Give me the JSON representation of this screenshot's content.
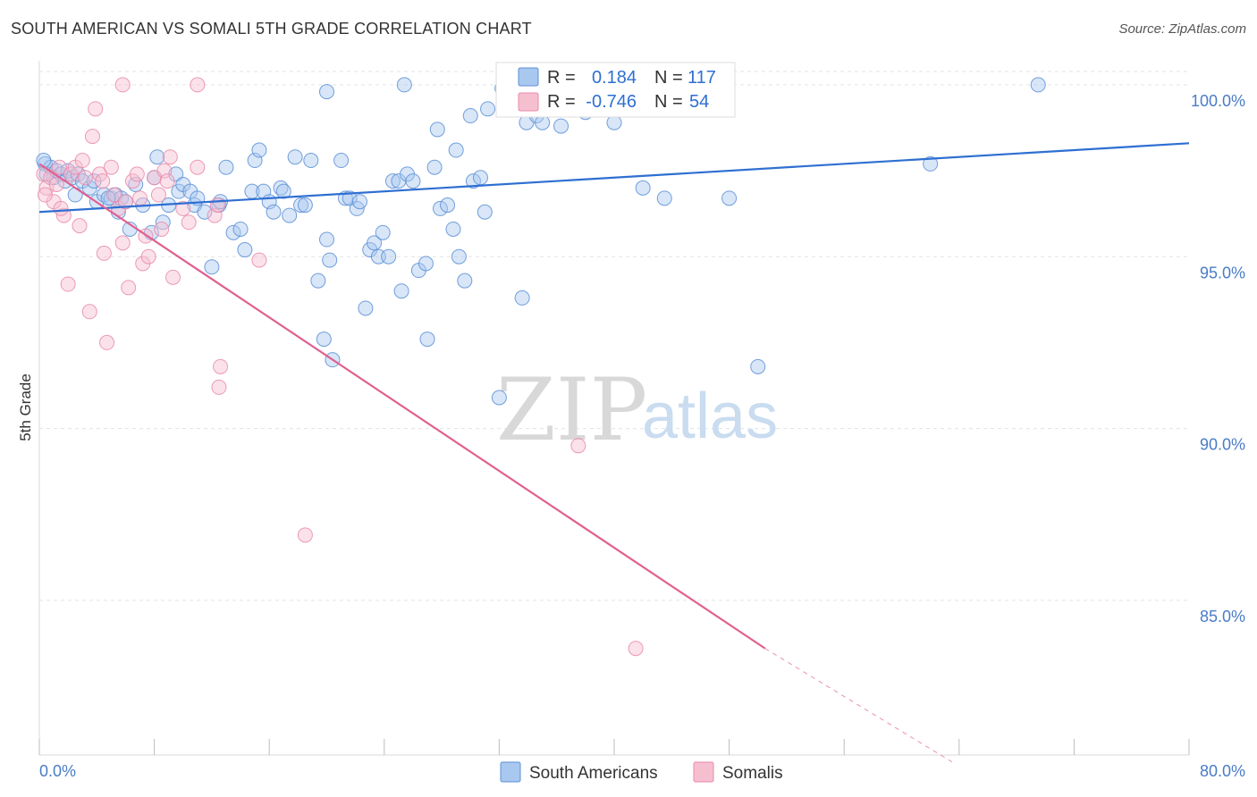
{
  "header": {
    "title": "SOUTH AMERICAN VS SOMALI 5TH GRADE CORRELATION CHART",
    "source": "Source: ZipAtlas.com"
  },
  "watermark": {
    "zip": "ZIP",
    "atlas": "atlas"
  },
  "legend": {
    "rows": [
      {
        "r_label": "R =",
        "r_value": "0.184",
        "n_label": "N =",
        "n_value": "117"
      },
      {
        "r_label": "R =",
        "r_value": "-0.746",
        "n_label": "N =",
        "n_value": "54"
      }
    ]
  },
  "colors": {
    "blue_fill": "#a9c8ef",
    "blue_stroke": "#5b8fd6",
    "blue_line": "#2e6fd1",
    "pink_fill": "#f6bfd0",
    "pink_stroke": "#e98aaa",
    "pink_line": "#e0608f",
    "axis_text": "#4a7cc7",
    "grid": "#e3e3e3"
  },
  "chart_data": {
    "type": "scatter",
    "title": "SOUTH AMERICAN VS SOMALI 5TH GRADE CORRELATION CHART",
    "xlabel": "",
    "ylabel": "5th Grade",
    "xlim": [
      0,
      80
    ],
    "ylim": [
      80.5,
      100.7
    ],
    "x_tick_labels": [
      "0.0%",
      "80.0%"
    ],
    "y_tick_labels": [
      "100.0%",
      "95.0%",
      "90.0%",
      "85.0%"
    ],
    "y_ticks": [
      100,
      95,
      90,
      85
    ],
    "x_minor_ticks": [
      0,
      8,
      16,
      24,
      32,
      40,
      48,
      56,
      64,
      72,
      80
    ],
    "grid": true,
    "legend_position": "top-center",
    "series": [
      {
        "name": "South Americans",
        "r": 0.184,
        "n": 117,
        "trend": {
          "x": [
            0,
            80
          ],
          "y": [
            96.3,
            98.3
          ]
        },
        "points": [
          [
            0.4,
            97.7
          ],
          [
            0.5,
            97.4
          ],
          [
            0.8,
            97.6
          ],
          [
            1.0,
            97.3
          ],
          [
            1.2,
            97.5
          ],
          [
            1.5,
            97.4
          ],
          [
            1.8,
            97.2
          ],
          [
            2.0,
            97.5
          ],
          [
            2.3,
            97.3
          ],
          [
            2.7,
            97.4
          ],
          [
            3.0,
            97.2
          ],
          [
            3.5,
            97.0
          ],
          [
            4.0,
            96.6
          ],
          [
            4.5,
            96.8
          ],
          [
            5.0,
            96.7
          ],
          [
            5.3,
            96.8
          ],
          [
            5.7,
            96.7
          ],
          [
            6.0,
            96.6
          ],
          [
            6.7,
            97.1
          ],
          [
            7.2,
            96.5
          ],
          [
            7.8,
            95.7
          ],
          [
            8.2,
            97.9
          ],
          [
            8.6,
            96.0
          ],
          [
            9.0,
            96.5
          ],
          [
            9.5,
            97.4
          ],
          [
            9.7,
            96.9
          ],
          [
            10.0,
            97.1
          ],
          [
            10.5,
            96.9
          ],
          [
            10.8,
            96.5
          ],
          [
            11.0,
            96.7
          ],
          [
            11.5,
            96.3
          ],
          [
            12.0,
            94.7
          ],
          [
            12.5,
            96.5
          ],
          [
            12.6,
            96.6
          ],
          [
            13.0,
            97.6
          ],
          [
            13.5,
            95.7
          ],
          [
            14.0,
            95.8
          ],
          [
            14.3,
            95.2
          ],
          [
            14.8,
            96.9
          ],
          [
            15.0,
            97.8
          ],
          [
            15.3,
            98.1
          ],
          [
            15.6,
            96.9
          ],
          [
            16.0,
            96.6
          ],
          [
            16.3,
            96.3
          ],
          [
            16.8,
            97.0
          ],
          [
            17.0,
            96.9
          ],
          [
            17.4,
            96.2
          ],
          [
            17.8,
            97.9
          ],
          [
            18.2,
            96.5
          ],
          [
            18.5,
            96.5
          ],
          [
            18.9,
            97.8
          ],
          [
            19.4,
            94.3
          ],
          [
            19.8,
            92.6
          ],
          [
            20.0,
            95.5
          ],
          [
            20.2,
            94.9
          ],
          [
            20.4,
            92.0
          ],
          [
            21.0,
            97.8
          ],
          [
            21.3,
            96.7
          ],
          [
            21.6,
            96.7
          ],
          [
            22.1,
            96.4
          ],
          [
            22.3,
            96.6
          ],
          [
            22.7,
            93.5
          ],
          [
            23.0,
            95.2
          ],
          [
            23.3,
            95.4
          ],
          [
            23.6,
            95.0
          ],
          [
            23.9,
            95.7
          ],
          [
            24.3,
            95.0
          ],
          [
            24.6,
            97.2
          ],
          [
            25.0,
            97.2
          ],
          [
            25.2,
            94.0
          ],
          [
            25.6,
            97.4
          ],
          [
            26.0,
            97.2
          ],
          [
            25.4,
            100.0
          ],
          [
            20.0,
            99.8
          ],
          [
            26.4,
            94.6
          ],
          [
            26.9,
            94.8
          ],
          [
            27.0,
            92.6
          ],
          [
            27.5,
            97.6
          ],
          [
            27.7,
            98.7
          ],
          [
            27.9,
            96.4
          ],
          [
            28.4,
            96.5
          ],
          [
            28.8,
            95.8
          ],
          [
            29.0,
            98.1
          ],
          [
            29.2,
            95.0
          ],
          [
            29.6,
            94.3
          ],
          [
            30.0,
            99.1
          ],
          [
            30.2,
            97.2
          ],
          [
            30.7,
            97.3
          ],
          [
            31.0,
            96.3
          ],
          [
            31.2,
            99.3
          ],
          [
            32.0,
            90.9
          ],
          [
            32.2,
            99.9
          ],
          [
            33.6,
            93.8
          ],
          [
            33.9,
            98.9
          ],
          [
            34.3,
            99.6
          ],
          [
            34.6,
            99.1
          ],
          [
            35.0,
            98.9
          ],
          [
            36.3,
            98.8
          ],
          [
            36.6,
            99.9
          ],
          [
            37.5,
            99.8
          ],
          [
            39.0,
            99.8
          ],
          [
            39.5,
            99.5
          ],
          [
            40.2,
            99.3
          ],
          [
            40.5,
            99.3
          ],
          [
            38.8,
            99.7
          ],
          [
            38.0,
            99.2
          ],
          [
            37.8,
            100.0
          ],
          [
            40.0,
            98.9
          ],
          [
            41.1,
            99.4
          ],
          [
            42.0,
            97.0
          ],
          [
            43.5,
            96.7
          ],
          [
            48.0,
            96.7
          ],
          [
            50.0,
            91.8
          ],
          [
            62.0,
            97.7
          ],
          [
            69.5,
            100.0
          ],
          [
            0.3,
            97.8
          ],
          [
            2.5,
            96.8
          ],
          [
            6.3,
            95.8
          ],
          [
            8.0,
            97.3
          ],
          [
            3.8,
            97.2
          ],
          [
            5.5,
            96.3
          ],
          [
            4.8,
            96.7
          ]
        ]
      },
      {
        "name": "Somalis",
        "r": -0.746,
        "n": 54,
        "trend": {
          "x": [
            0,
            50.5
          ],
          "y": [
            97.7,
            83.6
          ]
        },
        "trend_dashed": {
          "x": [
            50.5,
            63.5
          ],
          "y": [
            83.6,
            80.3
          ]
        },
        "points": [
          [
            0.3,
            97.4
          ],
          [
            0.5,
            97.0
          ],
          [
            0.8,
            97.3
          ],
          [
            1.0,
            96.6
          ],
          [
            1.2,
            97.1
          ],
          [
            1.4,
            97.6
          ],
          [
            1.7,
            96.2
          ],
          [
            2.0,
            94.2
          ],
          [
            2.2,
            97.4
          ],
          [
            2.5,
            97.6
          ],
          [
            2.8,
            95.9
          ],
          [
            3.0,
            97.8
          ],
          [
            3.2,
            97.3
          ],
          [
            3.5,
            93.4
          ],
          [
            3.7,
            98.5
          ],
          [
            3.9,
            99.3
          ],
          [
            4.2,
            97.4
          ],
          [
            4.4,
            97.2
          ],
          [
            4.5,
            95.1
          ],
          [
            4.7,
            92.5
          ],
          [
            5.0,
            97.6
          ],
          [
            5.2,
            96.8
          ],
          [
            5.5,
            96.4
          ],
          [
            5.8,
            95.4
          ],
          [
            6.0,
            96.6
          ],
          [
            6.2,
            94.1
          ],
          [
            6.5,
            97.2
          ],
          [
            6.8,
            97.4
          ],
          [
            7.0,
            96.7
          ],
          [
            7.2,
            94.8
          ],
          [
            7.4,
            95.6
          ],
          [
            7.6,
            95.0
          ],
          [
            8.0,
            97.3
          ],
          [
            8.3,
            96.8
          ],
          [
            8.5,
            95.8
          ],
          [
            8.7,
            97.5
          ],
          [
            8.9,
            97.2
          ],
          [
            9.1,
            97.9
          ],
          [
            9.3,
            94.4
          ],
          [
            10.0,
            96.4
          ],
          [
            10.4,
            96.0
          ],
          [
            11.0,
            97.6
          ],
          [
            12.2,
            96.2
          ],
          [
            12.4,
            96.5
          ],
          [
            12.6,
            91.8
          ],
          [
            12.5,
            91.2
          ],
          [
            15.3,
            94.9
          ],
          [
            18.5,
            86.9
          ],
          [
            37.5,
            89.5
          ],
          [
            41.5,
            83.6
          ],
          [
            11.0,
            100.0
          ],
          [
            5.8,
            100.0
          ],
          [
            0.4,
            96.8
          ],
          [
            1.5,
            96.4
          ]
        ]
      }
    ]
  }
}
